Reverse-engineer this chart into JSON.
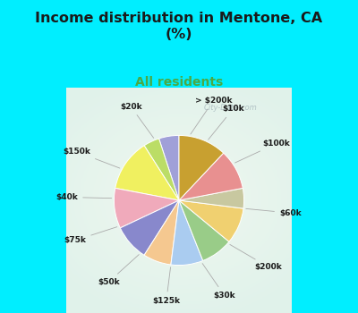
{
  "title": "Income distribution in Mentone, CA\n(%)",
  "subtitle": "All residents",
  "title_color": "#1a1a1a",
  "subtitle_color": "#4aaa44",
  "bg_top_color": "#00eeff",
  "bg_pie_color_center": "#e8f5ee",
  "bg_pie_color_edge": "#c8eeee",
  "labels": [
    "> $200k",
    "$10k",
    "$100k",
    "$60k",
    "$200k",
    "$30k",
    "$125k",
    "$50k",
    "$75k",
    "$40k",
    "$150k",
    "$20k"
  ],
  "values": [
    5,
    4,
    13,
    10,
    9,
    7,
    8,
    8,
    9,
    5,
    10,
    12
  ],
  "colors": [
    "#a0a0d8",
    "#bbdd66",
    "#f0f060",
    "#f0aabb",
    "#8888cc",
    "#f5c890",
    "#aaccf0",
    "#99cc88",
    "#f0d070",
    "#c8c8a0",
    "#e89090",
    "#c8a030"
  ],
  "figsize": [
    4.0,
    3.5
  ],
  "dpi": 100,
  "startangle": 90
}
